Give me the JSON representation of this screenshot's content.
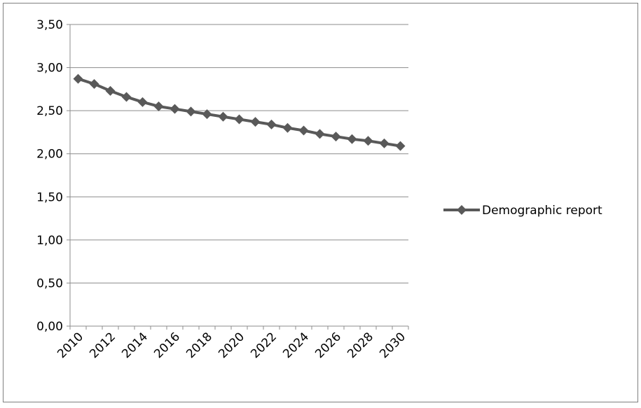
{
  "chart_data": {
    "type": "line",
    "title": "",
    "xlabel": "",
    "ylabel": "",
    "x": [
      2010,
      2011,
      2012,
      2013,
      2014,
      2015,
      2016,
      2017,
      2018,
      2019,
      2020,
      2021,
      2022,
      2023,
      2024,
      2025,
      2026,
      2027,
      2028,
      2029,
      2030
    ],
    "x_tick_labels": [
      "2010",
      "2012",
      "2014",
      "2016",
      "2018",
      "2020",
      "2022",
      "2024",
      "2026",
      "2028",
      "2030"
    ],
    "y_tick_labels": [
      "0,00",
      "0,50",
      "1,00",
      "1,50",
      "2,00",
      "2,50",
      "3,00",
      "3,50"
    ],
    "ylim": [
      0,
      3.5
    ],
    "grid": true,
    "legend_position": "right",
    "series": [
      {
        "name": "Demographic report",
        "color": "#595959",
        "marker": "diamond",
        "values": [
          2.87,
          2.81,
          2.73,
          2.66,
          2.6,
          2.55,
          2.52,
          2.49,
          2.46,
          2.43,
          2.4,
          2.37,
          2.34,
          2.3,
          2.27,
          2.23,
          2.2,
          2.17,
          2.15,
          2.12,
          2.09
        ]
      }
    ]
  }
}
